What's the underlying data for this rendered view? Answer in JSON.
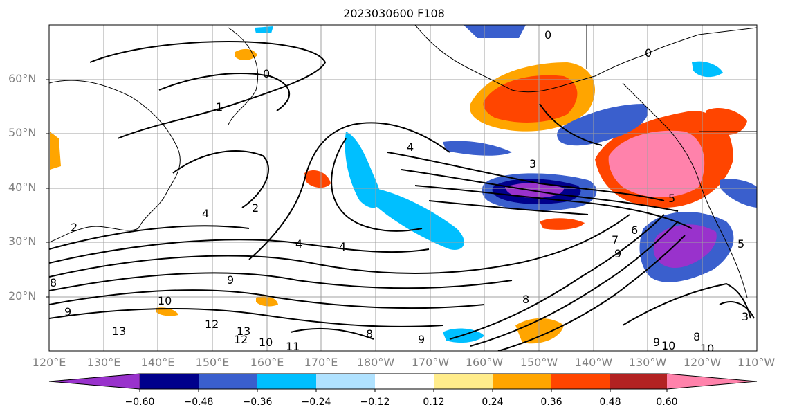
{
  "title": "2023030600 F108",
  "lat_labels": [
    "60°N",
    "50°N",
    "40°N",
    "30°N",
    "20°N"
  ],
  "lon_labels": [
    "120°E",
    "130°E",
    "140°E",
    "150°E",
    "160°E",
    "170°E",
    "180°W",
    "170°W",
    "160°W",
    "150°W",
    "140°W",
    "130°W",
    "120°W",
    "110°W"
  ],
  "colorbar": {
    "ticks": [
      "−0.60",
      "−0.48",
      "−0.36",
      "−0.24",
      "−0.12",
      "0.12",
      "0.24",
      "0.36",
      "0.48",
      "0.60"
    ],
    "colors": [
      "#9932cc",
      "#00008b",
      "#3a5fcd",
      "#00bfff",
      "#b0e2ff",
      "#ffffff",
      "#ffec8b",
      "#ffa500",
      "#ff4500",
      "#b22222",
      "#ff82ab"
    ]
  },
  "contour_labels": [
    "0",
    "0",
    "0",
    "1",
    "2",
    "2",
    "3",
    "3",
    "4",
    "4",
    "4",
    "4",
    "5",
    "5",
    "6",
    "7",
    "8",
    "8",
    "8",
    "8",
    "9",
    "9",
    "9",
    "9",
    "9",
    "10",
    "10",
    "10",
    "10",
    "11",
    "12",
    "12",
    "13",
    "13"
  ]
}
